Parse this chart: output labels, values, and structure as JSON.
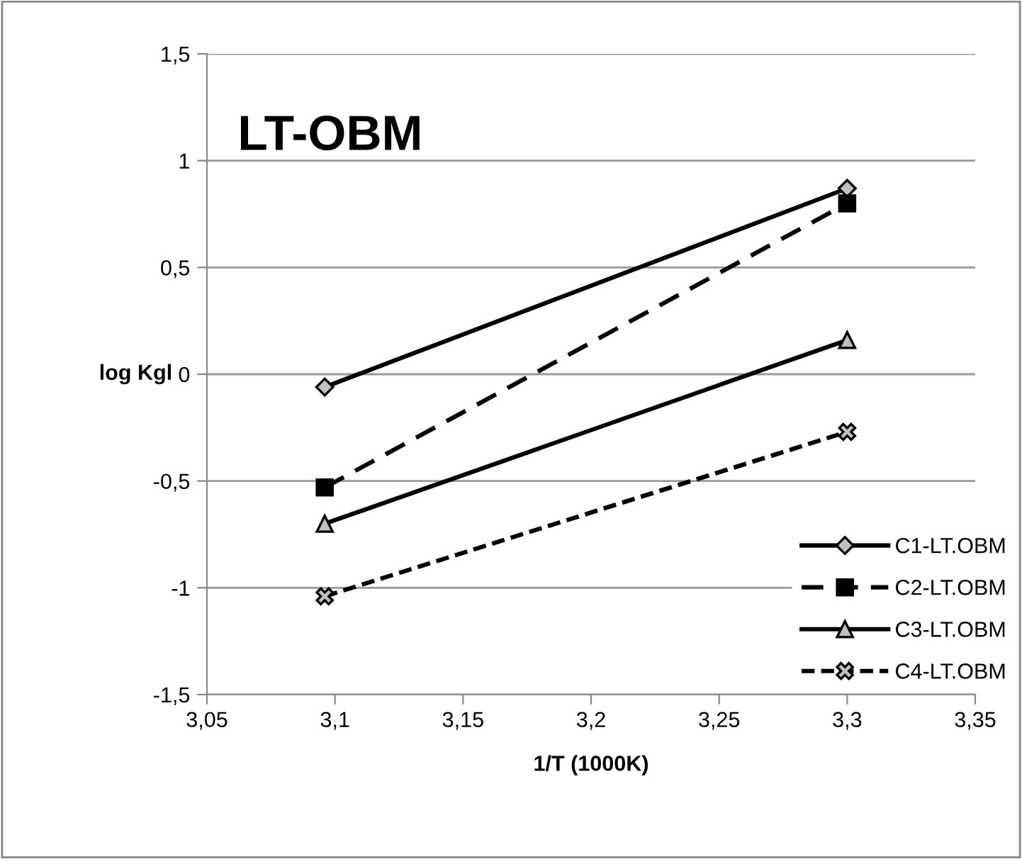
{
  "chart_data": {
    "type": "line",
    "title": "LT-OBM",
    "xlabel": "1/T (1000K)",
    "ylabel": "log Kgl",
    "xlim": [
      3.05,
      3.35
    ],
    "xticks": [
      {
        "value": 3.05,
        "label": "3,05"
      },
      {
        "value": 3.1,
        "label": "3,1"
      },
      {
        "value": 3.15,
        "label": "3,15"
      },
      {
        "value": 3.2,
        "label": "3,2"
      },
      {
        "value": 3.25,
        "label": "3,25"
      },
      {
        "value": 3.3,
        "label": "3,3"
      },
      {
        "value": 3.35,
        "label": "3,35"
      }
    ],
    "ylim": [
      -1.5,
      1.5
    ],
    "yticks": [
      {
        "value": -1.5,
        "label": "-1,5"
      },
      {
        "value": -1,
        "label": "-1"
      },
      {
        "value": -0.5,
        "label": "-0,5"
      },
      {
        "value": 0,
        "label": "0"
      },
      {
        "value": 0.5,
        "label": "0,5"
      },
      {
        "value": 1,
        "label": "1"
      },
      {
        "value": 1.5,
        "label": "1,5"
      }
    ],
    "grid": "y",
    "legend": "bottom right",
    "x": [
      3.096,
      3.3
    ],
    "series": [
      {
        "name": "C1-LT.OBM",
        "color": "#000000",
        "values": [
          -0.06,
          0.87
        ],
        "marker": "diamond",
        "line_style": "solid"
      },
      {
        "name": "C2-LT.OBM",
        "color": "#000000",
        "values": [
          -0.53,
          0.8
        ],
        "marker": "square",
        "line_style": "dashed"
      },
      {
        "name": "C3-LT.OBM",
        "color": "#000000",
        "values": [
          -0.7,
          0.16
        ],
        "marker": "triangle",
        "line_style": "solid"
      },
      {
        "name": "C4-LT.OBM",
        "color": "#000000",
        "values": [
          -1.04,
          -0.27
        ],
        "marker": "cross",
        "line_style": "dotted"
      }
    ]
  }
}
